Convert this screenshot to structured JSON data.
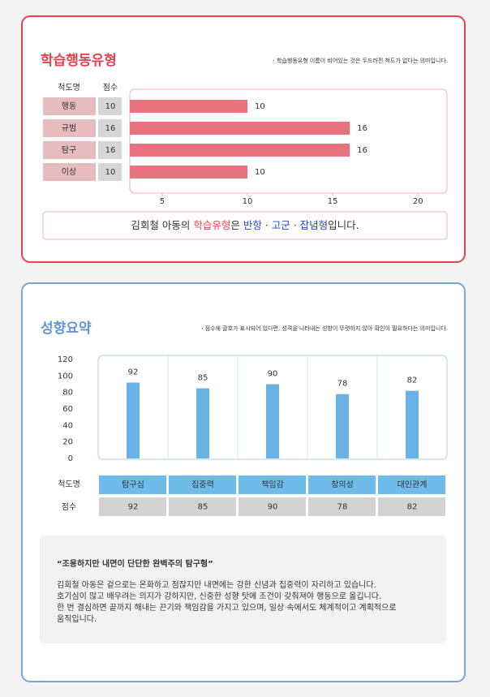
{
  "chart_data": [
    {
      "type": "hbar",
      "title": "학습행동유형",
      "note": "· 학습행동유형 이름이 비어있는 것은 두드러진 척도가 없다는 의미입니다.",
      "column_headers": [
        "척도명",
        "점수"
      ],
      "categories": [
        "행동",
        "규범",
        "탐구",
        "이상"
      ],
      "values": [
        10,
        16,
        16,
        10
      ],
      "color": "#e8727d",
      "xlim": [
        3.1,
        21.7
      ],
      "xticks": [
        5,
        10,
        15,
        20
      ],
      "summary_parts": [
        "김회철 아동의 ",
        "학습유형",
        "은 ",
        "반항 · 고군 · 잡념형",
        "입니다."
      ]
    },
    {
      "type": "bar",
      "title": "성향요약",
      "note": "· 점수에 괄호가 표시되어 있다면, 성격을 나타내는 성향이 뚜렷하지 않아 확인이 필요하다는 의미입니다.",
      "row_headers": [
        "척도명",
        "점수"
      ],
      "categories": [
        "탐구심",
        "집중력",
        "책임감",
        "창의성",
        "대인관계"
      ],
      "values": [
        92,
        85,
        90,
        78,
        82
      ],
      "color": "#6ab2e6",
      "ylim": [
        0,
        120
      ],
      "yticks": [
        0,
        20,
        40,
        60,
        80,
        100,
        120
      ],
      "description": {
        "heading": "“조용하지만 내면이 단단한 완벽주의 탐구형”",
        "lines": [
          "김회철 아동은 겉으로는 온화하고 점잖지만 내면에는 강한 신념과 집중력이 자리하고 있습니다.",
          "호기심이 많고 배우려는 의지가 강하지만, 신중한 성향 탓에 조건이 갖춰져야 행동으로 옮깁니다.",
          "한 번 결심하면 끝까지 해내는 끈기와 책임감을 가지고 있으며, 일상 속에서도 체계적이고 계획적으로",
          "움직입니다."
        ]
      }
    }
  ]
}
